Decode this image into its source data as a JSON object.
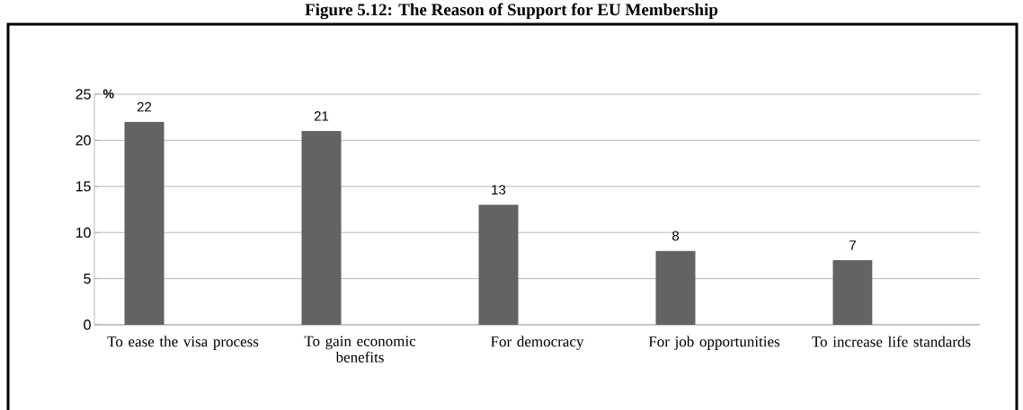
{
  "chart_data": {
    "type": "bar",
    "title": "Figure 5.12: The Reason of Support for EU Membership",
    "ylabel": "%",
    "categories": [
      "To ease the visa process",
      "To gain economic benefits",
      "For democracy",
      "For job opportunities",
      "To increase life standards"
    ],
    "values": [
      22,
      21,
      13,
      8,
      7
    ],
    "color": "#636363",
    "ylim": [
      0,
      25
    ],
    "yticks": [
      0,
      5,
      10,
      15,
      20,
      25
    ],
    "grid": "y",
    "data_labels": true
  }
}
